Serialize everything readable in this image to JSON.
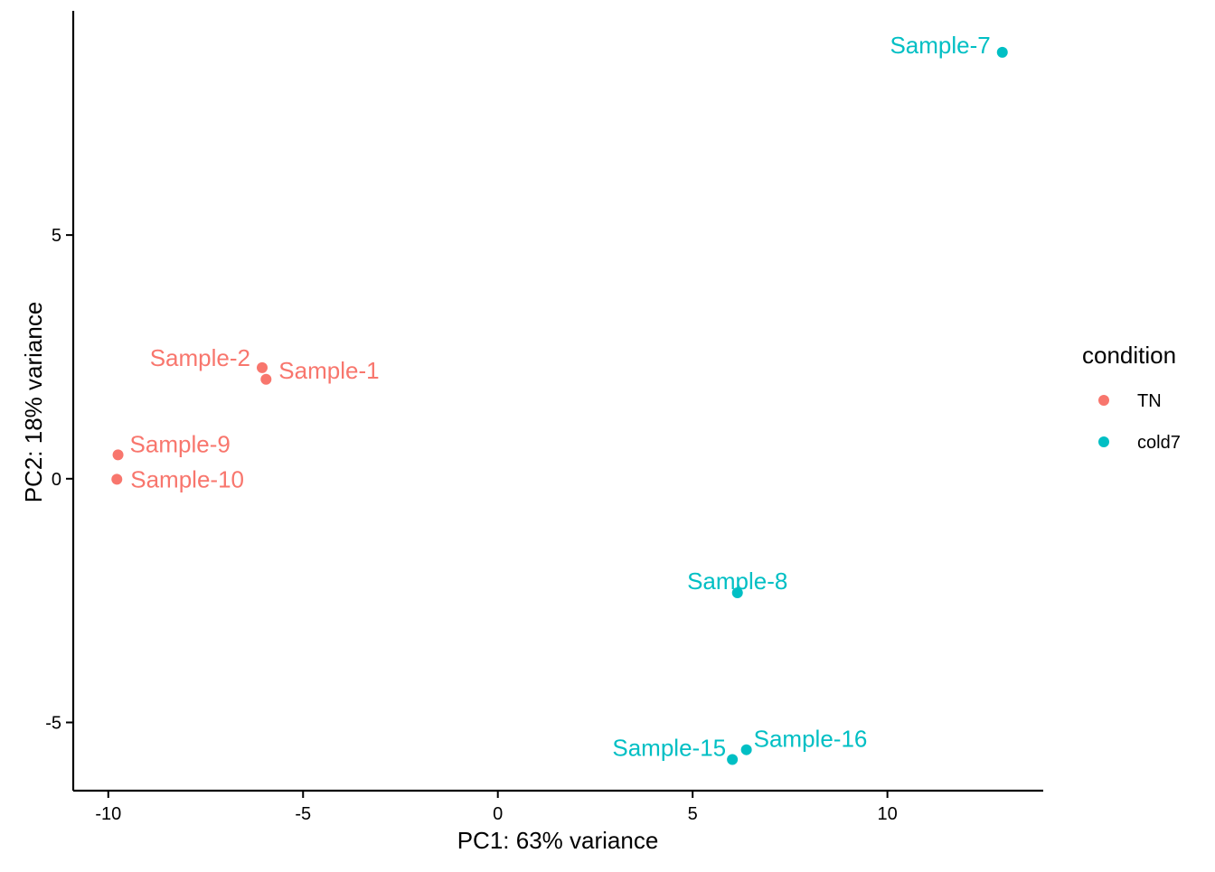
{
  "chart_data": {
    "type": "scatter",
    "title": "",
    "xlabel": "PC1: 63% variance",
    "ylabel": "PC2: 18% variance",
    "xlim": [
      -10.9,
      14.0
    ],
    "ylim": [
      -6.4,
      9.6
    ],
    "xticks": [
      -10,
      -5,
      0,
      5,
      10
    ],
    "xtick_labels": [
      "-10",
      "-5",
      "0",
      "5",
      "10"
    ],
    "yticks": [
      -5,
      0,
      5
    ],
    "ytick_labels": [
      "-5",
      "0",
      "5"
    ],
    "legend": {
      "title": "condition",
      "position": "right",
      "entries": [
        {
          "label": "TN",
          "color": "#F8766D"
        },
        {
          "label": "cold7",
          "color": "#00BFC4"
        }
      ]
    },
    "series": [
      {
        "name": "TN",
        "color": "#F8766D",
        "points": [
          {
            "label": "Sample-1",
            "x": -5.95,
            "y": 2.04
          },
          {
            "label": "Sample-2",
            "x": -6.05,
            "y": 2.28
          },
          {
            "label": "Sample-9",
            "x": -9.75,
            "y": 0.49
          },
          {
            "label": "Sample-10",
            "x": -9.78,
            "y": -0.01
          }
        ]
      },
      {
        "name": "cold7",
        "color": "#00BFC4",
        "points": [
          {
            "label": "Sample-7",
            "x": 12.95,
            "y": 8.75
          },
          {
            "label": "Sample-8",
            "x": 6.15,
            "y": -2.34
          },
          {
            "label": "Sample-15",
            "x": 6.02,
            "y": -5.76
          },
          {
            "label": "Sample-16",
            "x": 6.38,
            "y": -5.56
          }
        ]
      }
    ]
  }
}
